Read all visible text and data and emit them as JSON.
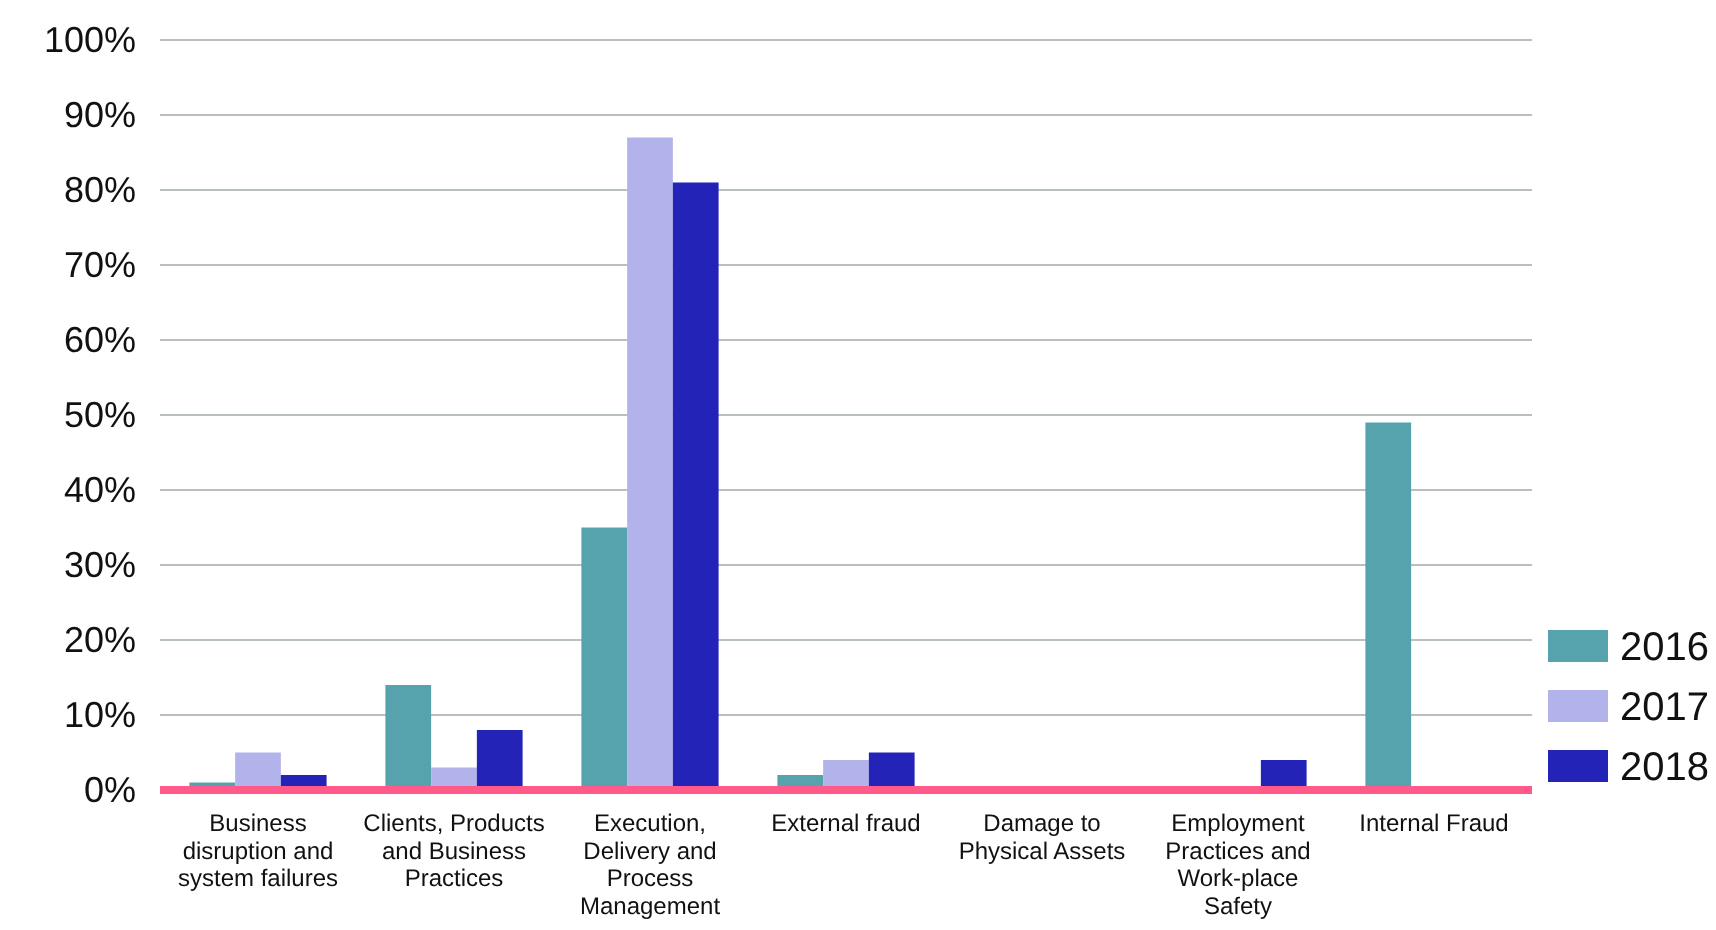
{
  "chart_data": {
    "type": "bar",
    "categories": [
      "Business disruption and system failures",
      "Clients, Products and Business Practices",
      "Execution, Delivery and Process Management",
      "External fraud",
      "Damage to Physical Assets",
      "Employment Practices and Work-place Safety",
      "Internal Fraud"
    ],
    "series": [
      {
        "name": "2016",
        "color": "#56a3ad",
        "values": [
          1,
          14,
          35,
          2,
          0,
          0,
          49
        ]
      },
      {
        "name": "2017",
        "color": "#b3b3ec",
        "values": [
          5,
          3,
          87,
          4,
          0,
          0,
          0
        ]
      },
      {
        "name": "2018",
        "color": "#2323b8",
        "values": [
          2,
          8,
          81,
          5,
          0,
          4,
          0
        ]
      }
    ],
    "ylim": [
      0,
      100
    ],
    "yticks": [
      {
        "value": 0,
        "label": "0%"
      },
      {
        "value": 10,
        "label": "10%"
      },
      {
        "value": 20,
        "label": "20%"
      },
      {
        "value": 30,
        "label": "30%"
      },
      {
        "value": 40,
        "label": "40%"
      },
      {
        "value": 50,
        "label": "50%"
      },
      {
        "value": 60,
        "label": "60%"
      },
      {
        "value": 70,
        "label": "70%"
      },
      {
        "value": 80,
        "label": "80%"
      },
      {
        "value": 90,
        "label": "90%"
      },
      {
        "value": 100,
        "label": "100%"
      }
    ],
    "grid": "y",
    "legend": "bottom right"
  }
}
